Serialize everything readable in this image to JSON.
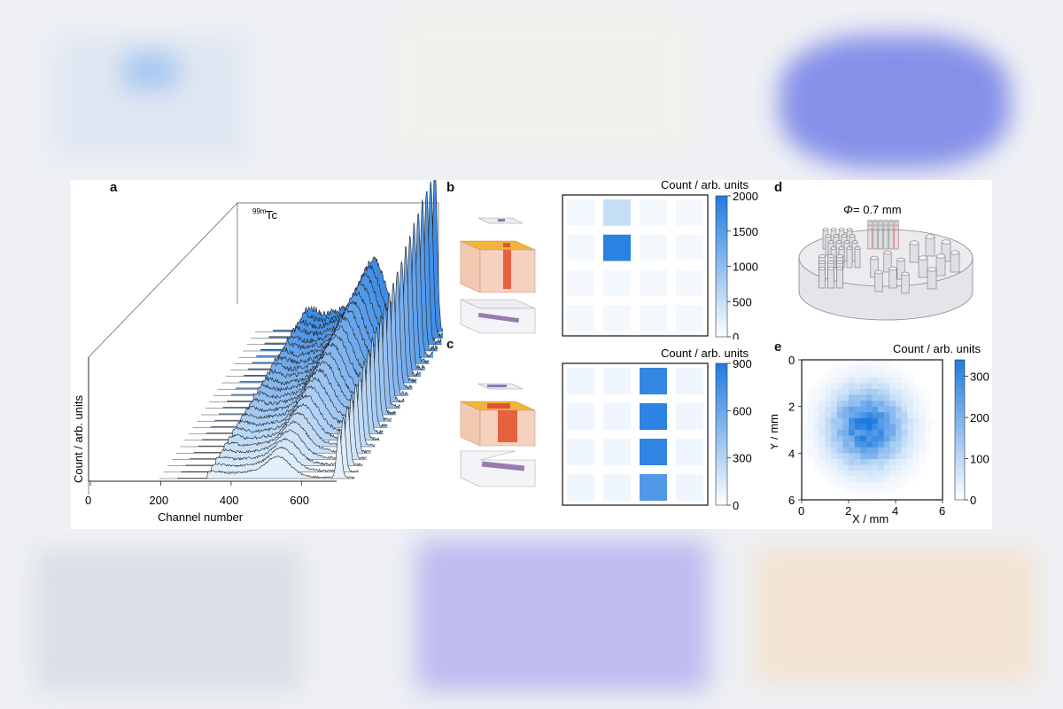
{
  "panel_labels": {
    "a": "a",
    "b": "b",
    "c": "c",
    "d": "d",
    "e": "e"
  },
  "chart_data": [
    {
      "panel": "a",
      "type": "line",
      "title": "",
      "annotation_isotope_mass": "99m",
      "annotation_isotope_symbol": "Tc",
      "xlabel": "Channel number",
      "ylabel": "Count / arb. units",
      "x_ticks": [
        "0",
        "200",
        "400",
        "600"
      ],
      "xlim": [
        0,
        700
      ],
      "n_spectra": 24,
      "series": [
        {
          "peak_channel": 140,
          "peak_height": 0.08
        },
        {
          "peak_channel": 400,
          "peak_height": 0.35
        },
        {
          "peak_channel": 640,
          "peak_height": 1.0
        }
      ],
      "colors": {
        "fill_back": "#3d8ce6",
        "fill_front": "#e4f0fb",
        "line": "#222222"
      }
    },
    {
      "panel": "b",
      "type": "heatmap",
      "colorbar_label": "Count / arb. units",
      "colorbar_ticks": [
        "2000",
        "1500",
        "1000",
        "500",
        "0"
      ],
      "vmin": 0,
      "vmax": 2000,
      "grid": [
        [
          120,
          500,
          110,
          100
        ],
        [
          110,
          1900,
          110,
          100
        ],
        [
          100,
          110,
          100,
          100
        ],
        [
          110,
          100,
          110,
          100
        ]
      ]
    },
    {
      "panel": "c",
      "type": "heatmap",
      "colorbar_label": "Count / arb. units",
      "colorbar_ticks": [
        "900",
        "600",
        "300",
        "0"
      ],
      "vmin": 0,
      "vmax": 900,
      "grid": [
        [
          60,
          60,
          820,
          60
        ],
        [
          60,
          60,
          840,
          60
        ],
        [
          60,
          60,
          830,
          60
        ],
        [
          60,
          60,
          700,
          60
        ]
      ]
    },
    {
      "panel": "d",
      "type": "diagram",
      "annotation_symbol": "Φ",
      "annotation_value": " = 0.7 mm"
    },
    {
      "panel": "e",
      "type": "heatmap",
      "xlabel": "X / mm",
      "ylabel": "Y / mm",
      "x_ticks": [
        "0",
        "2",
        "4",
        "6"
      ],
      "y_ticks": [
        "0",
        "2",
        "4",
        "6"
      ],
      "xlim": [
        0,
        6
      ],
      "ylim": [
        0,
        6
      ],
      "colorbar_label": "Count / arb. units",
      "colorbar_ticks": [
        "300",
        "200",
        "100",
        "0"
      ],
      "vmin": 0,
      "vmax": 340,
      "blob_center": [
        2.8,
        2.9
      ],
      "blob_peak": 330
    }
  ]
}
